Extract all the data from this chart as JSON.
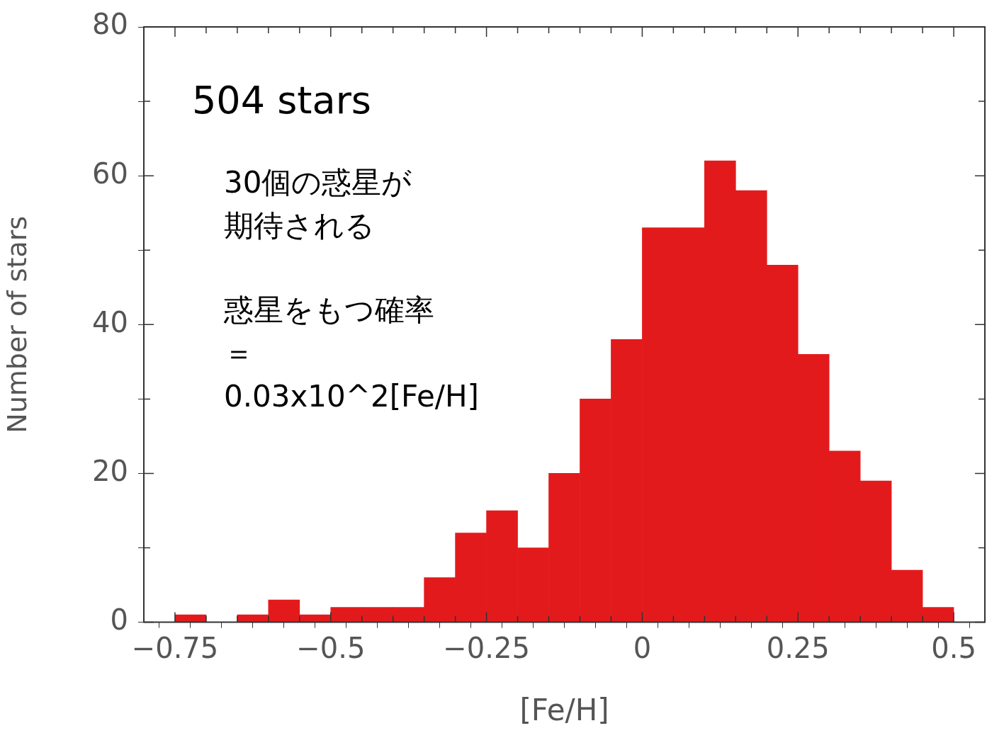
{
  "chart_data": {
    "type": "histogram",
    "xlabel": "[Fe/H]",
    "ylabel": "Number of stars",
    "bins": [
      -0.75,
      -0.7,
      -0.65,
      -0.6,
      -0.55,
      -0.5,
      -0.45,
      -0.4,
      -0.35,
      -0.3,
      -0.25,
      -0.2,
      -0.15,
      -0.1,
      -0.05,
      0,
      0.05,
      0.1,
      0.15,
      0.2,
      0.25,
      0.3,
      0.35,
      0.4,
      0.45,
      0.5
    ],
    "values": [
      1,
      0,
      1,
      3,
      1,
      2,
      2,
      2,
      6,
      12,
      15,
      10,
      20,
      30,
      38,
      53,
      53,
      62,
      58,
      48,
      36,
      23,
      19,
      7,
      2
    ],
    "color": "#e31a1c",
    "xlim": [
      -0.8,
      0.55
    ],
    "xticks": [
      {
        "value": -0.75,
        "label": "−0.75"
      },
      {
        "value": -0.7,
        "label": null
      },
      {
        "value": -0.65,
        "label": null
      },
      {
        "value": -0.6,
        "label": null
      },
      {
        "value": -0.55,
        "label": null
      },
      {
        "value": -0.5,
        "label": "−0.5"
      },
      {
        "value": -0.45,
        "label": null
      },
      {
        "value": -0.4,
        "label": null
      },
      {
        "value": -0.35,
        "label": null
      },
      {
        "value": -0.3,
        "label": null
      },
      {
        "value": -0.25,
        "label": "−0.25"
      },
      {
        "value": -0.2,
        "label": null
      },
      {
        "value": -0.15,
        "label": null
      },
      {
        "value": -0.1,
        "label": null
      },
      {
        "value": -0.05,
        "label": null
      },
      0,
      {
        "value": 0.05,
        "label": null
      },
      {
        "value": 0.1,
        "label": null
      },
      {
        "value": 0.15,
        "label": null
      },
      {
        "value": 0.2,
        "label": null
      },
      0.25,
      {
        "value": 0.3,
        "label": null
      },
      {
        "value": 0.35,
        "label": null
      },
      {
        "value": 0.4,
        "label": null
      },
      {
        "value": 0.45,
        "label": null
      },
      0.5
    ],
    "ylim": [
      0,
      80
    ],
    "yticks": [
      0,
      {
        "value": 10,
        "label": null
      },
      20,
      {
        "value": 30,
        "label": null
      },
      40,
      {
        "value": 50,
        "label": null
      },
      60,
      {
        "value": 70,
        "label": null
      },
      80
    ],
    "grid": false,
    "annotations": [
      "504 stars",
      "30個の惑星が期待される",
      "惑星をもつ確率＝0.03x10^2[Fe/H]"
    ]
  }
}
